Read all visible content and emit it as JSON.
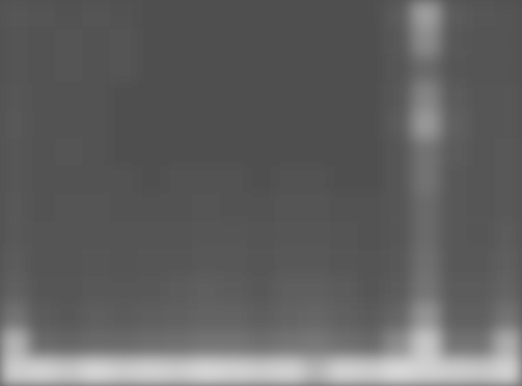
{
  "chart_data": {
    "type": "heatmap",
    "tick_labels": false,
    "zlim": [
      0,
      1
    ],
    "cells": [
      [
        0.34,
        0.33,
        0.32,
        0.33,
        0.32,
        0.31,
        0.31,
        0.31,
        0.31,
        0.31,
        0.31,
        0.31,
        0.31,
        0.31,
        0.36,
        0.62,
        0.36,
        0.34,
        0.33
      ],
      [
        0.33,
        0.32,
        0.33,
        0.32,
        0.33,
        0.31,
        0.31,
        0.31,
        0.31,
        0.31,
        0.31,
        0.31,
        0.31,
        0.31,
        0.35,
        0.55,
        0.35,
        0.33,
        0.33
      ],
      [
        0.33,
        0.32,
        0.33,
        0.32,
        0.33,
        0.31,
        0.31,
        0.31,
        0.31,
        0.31,
        0.31,
        0.31,
        0.31,
        0.31,
        0.34,
        0.42,
        0.34,
        0.33,
        0.33
      ],
      [
        0.34,
        0.32,
        0.32,
        0.32,
        0.31,
        0.31,
        0.31,
        0.31,
        0.31,
        0.31,
        0.31,
        0.31,
        0.31,
        0.31,
        0.35,
        0.52,
        0.36,
        0.34,
        0.34
      ],
      [
        0.35,
        0.32,
        0.32,
        0.32,
        0.31,
        0.31,
        0.31,
        0.31,
        0.31,
        0.31,
        0.31,
        0.31,
        0.31,
        0.31,
        0.36,
        0.6,
        0.38,
        0.34,
        0.34
      ],
      [
        0.34,
        0.32,
        0.33,
        0.32,
        0.31,
        0.31,
        0.31,
        0.31,
        0.31,
        0.31,
        0.31,
        0.31,
        0.31,
        0.31,
        0.34,
        0.45,
        0.36,
        0.34,
        0.35
      ],
      [
        0.34,
        0.32,
        0.32,
        0.32,
        0.32,
        0.31,
        0.32,
        0.32,
        0.32,
        0.31,
        0.32,
        0.32,
        0.31,
        0.31,
        0.34,
        0.45,
        0.35,
        0.34,
        0.35
      ],
      [
        0.35,
        0.32,
        0.33,
        0.33,
        0.32,
        0.32,
        0.32,
        0.33,
        0.32,
        0.32,
        0.33,
        0.33,
        0.32,
        0.32,
        0.34,
        0.42,
        0.35,
        0.34,
        0.35
      ],
      [
        0.35,
        0.33,
        0.33,
        0.33,
        0.33,
        0.33,
        0.33,
        0.34,
        0.34,
        0.33,
        0.34,
        0.34,
        0.33,
        0.32,
        0.34,
        0.42,
        0.35,
        0.34,
        0.36
      ],
      [
        0.36,
        0.33,
        0.33,
        0.34,
        0.33,
        0.34,
        0.34,
        0.35,
        0.35,
        0.34,
        0.35,
        0.35,
        0.34,
        0.33,
        0.35,
        0.44,
        0.35,
        0.35,
        0.37
      ],
      [
        0.38,
        0.34,
        0.34,
        0.35,
        0.35,
        0.35,
        0.36,
        0.37,
        0.36,
        0.35,
        0.37,
        0.37,
        0.36,
        0.34,
        0.36,
        0.46,
        0.36,
        0.36,
        0.39
      ],
      [
        0.45,
        0.36,
        0.35,
        0.37,
        0.36,
        0.37,
        0.38,
        0.39,
        0.39,
        0.37,
        0.39,
        0.4,
        0.38,
        0.36,
        0.4,
        0.58,
        0.38,
        0.38,
        0.45
      ],
      [
        0.7,
        0.42,
        0.4,
        0.42,
        0.42,
        0.43,
        0.44,
        0.46,
        0.46,
        0.44,
        0.46,
        0.47,
        0.44,
        0.42,
        0.55,
        0.78,
        0.45,
        0.45,
        0.68
      ],
      [
        0.8,
        0.82,
        0.78,
        0.84,
        0.8,
        0.82,
        0.8,
        0.84,
        0.82,
        0.8,
        0.82,
        0.72,
        0.82,
        0.8,
        0.85,
        0.82,
        0.8,
        0.78,
        0.82
      ]
    ]
  }
}
